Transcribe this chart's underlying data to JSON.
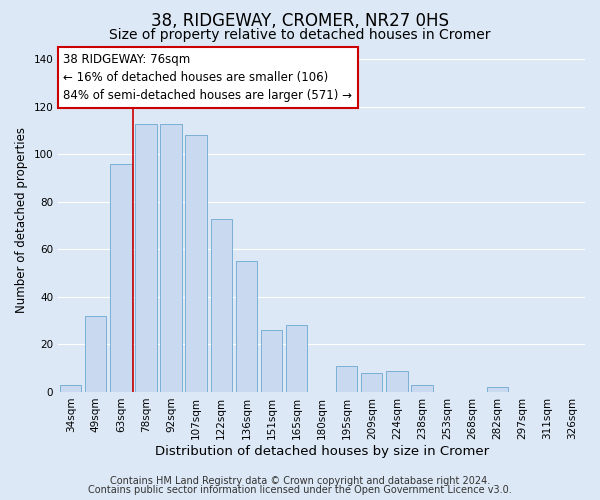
{
  "title": "38, RIDGEWAY, CROMER, NR27 0HS",
  "subtitle": "Size of property relative to detached houses in Cromer",
  "xlabel": "Distribution of detached houses by size in Cromer",
  "ylabel": "Number of detached properties",
  "categories": [
    "34sqm",
    "49sqm",
    "63sqm",
    "78sqm",
    "92sqm",
    "107sqm",
    "122sqm",
    "136sqm",
    "151sqm",
    "165sqm",
    "180sqm",
    "195sqm",
    "209sqm",
    "224sqm",
    "238sqm",
    "253sqm",
    "268sqm",
    "282sqm",
    "297sqm",
    "311sqm",
    "326sqm"
  ],
  "values": [
    3,
    32,
    96,
    113,
    113,
    108,
    73,
    55,
    26,
    28,
    0,
    11,
    8,
    9,
    3,
    0,
    0,
    2,
    0,
    0,
    0
  ],
  "bar_color": "#c9d9f0",
  "bar_edge_color": "#7aafd4",
  "background_color": "#dce8f5",
  "grid_color": "#ffffff",
  "annotation_line1": "38 RIDGEWAY: 76sqm",
  "annotation_line2": "← 16% of detached houses are smaller (106)",
  "annotation_line3": "84% of semi-detached houses are larger (571) →",
  "annotation_box_edge_color": "#cc0000",
  "annotation_box_facecolor": "#ffffff",
  "vline_color": "#cc0000",
  "vline_position": 2.5,
  "ylim": [
    0,
    145
  ],
  "yticks": [
    0,
    20,
    40,
    60,
    80,
    100,
    120,
    140
  ],
  "footnote1": "Contains HM Land Registry data © Crown copyright and database right 2024.",
  "footnote2": "Contains public sector information licensed under the Open Government Licence v3.0.",
  "title_fontsize": 12,
  "subtitle_fontsize": 10,
  "xlabel_fontsize": 9.5,
  "ylabel_fontsize": 8.5,
  "tick_fontsize": 7.5,
  "annotation_fontsize": 8.5,
  "footnote_fontsize": 7
}
